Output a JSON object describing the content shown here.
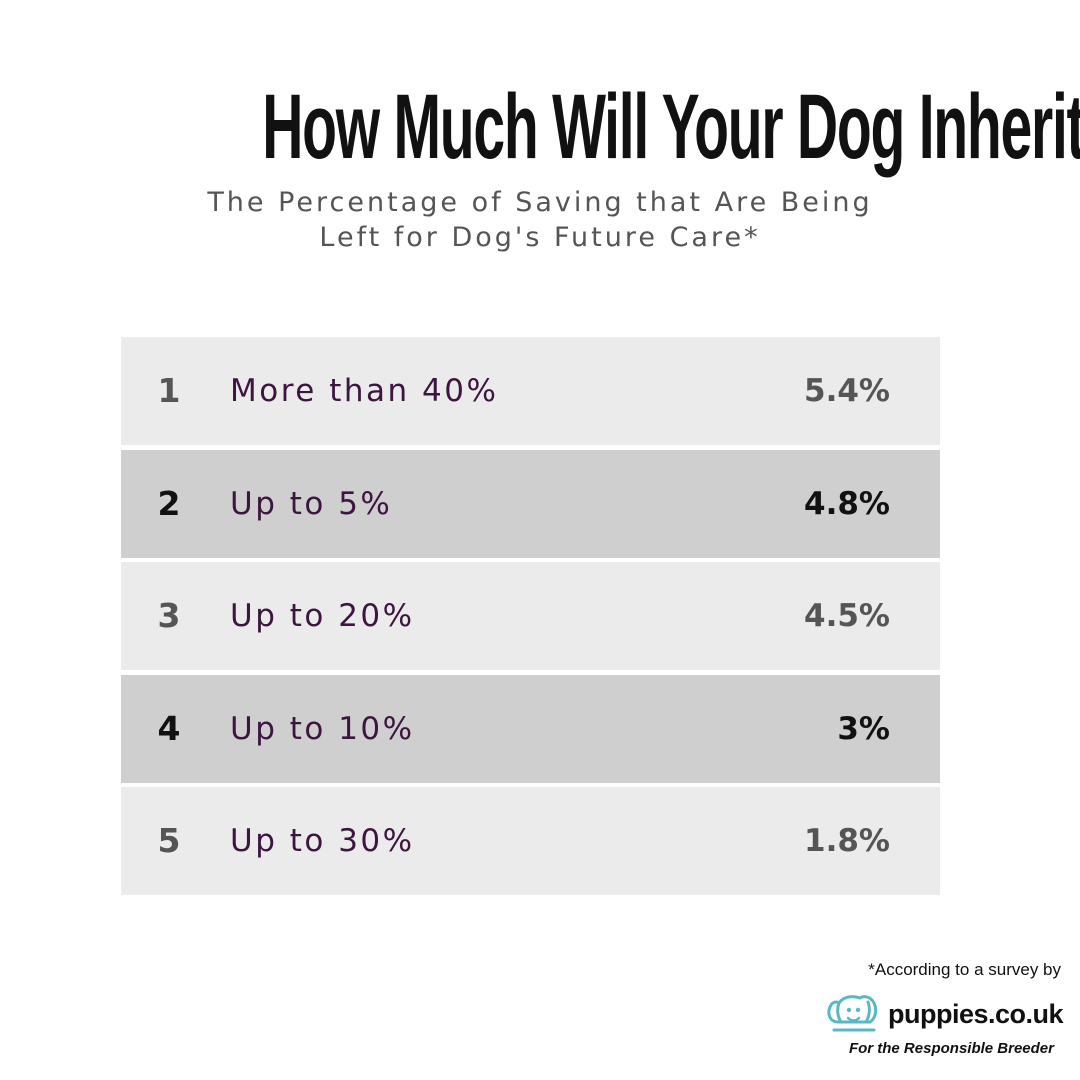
{
  "header": {
    "title": "How Much Will Your Dog Inherit?",
    "subtitle_line1": "The Percentage of Saving that Are Being",
    "subtitle_line2": "Left for Dog's Future Care*"
  },
  "chart_data": {
    "type": "table",
    "title": "How Much Will Your Dog Inherit?",
    "subtitle": "The Percentage of Saving that Are Being Left for Dog's Future Care*",
    "columns": [],
    "rows": [
      {
        "rank": "1",
        "label": "More than 40%",
        "value": "5.4%"
      },
      {
        "rank": "2",
        "label": "Up to 5%",
        "value": "4.8%"
      },
      {
        "rank": "3",
        "label": "Up to 20%",
        "value": "4.5%"
      },
      {
        "rank": "4",
        "label": "Up to 10%",
        "value": "3%"
      },
      {
        "rank": "5",
        "label": "Up to 30%",
        "value": "1.8%"
      }
    ],
    "values": [
      5.4,
      4.8,
      4.5,
      3,
      1.8
    ]
  },
  "footer": {
    "footnote": "*According to a survey by",
    "brand": "puppies.co.uk",
    "tagline": "For the Responsible Breeder",
    "logo_icon": "dog-head-icon"
  },
  "colors": {
    "row_light": "#ebebeb",
    "row_dark": "#cfcfcf",
    "text_light_row": "#555555",
    "text_dark_row": "#111111",
    "label_color": "#3d1540",
    "logo_accent": "#5ab8c4"
  }
}
